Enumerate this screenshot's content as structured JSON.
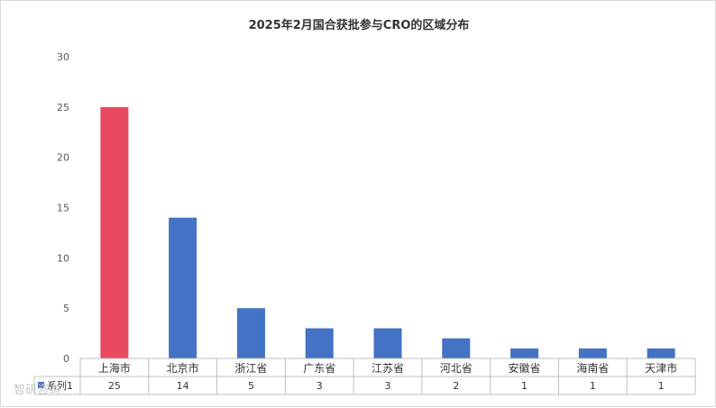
{
  "chart_data": {
    "type": "bar",
    "title": "2025年2月国合获批参与CRO的区域分布",
    "categories": [
      "上海市",
      "北京市",
      "浙江省",
      "广东省",
      "江苏省",
      "河北省",
      "安徽省",
      "海南省",
      "天津市"
    ],
    "series": [
      {
        "name": "系列1",
        "values": [
          25,
          14,
          5,
          3,
          3,
          2,
          1,
          1,
          1
        ]
      }
    ],
    "ylim": [
      0,
      30
    ],
    "yticks": [
      "0",
      "5",
      "10",
      "15",
      "20",
      "25",
      "30"
    ],
    "xlabel": "",
    "ylabel": "",
    "grid": false,
    "data_table": true,
    "colors": {
      "highlight": "#E84A5F",
      "default": "#4472C4"
    }
  },
  "watermark": "智研咨询"
}
